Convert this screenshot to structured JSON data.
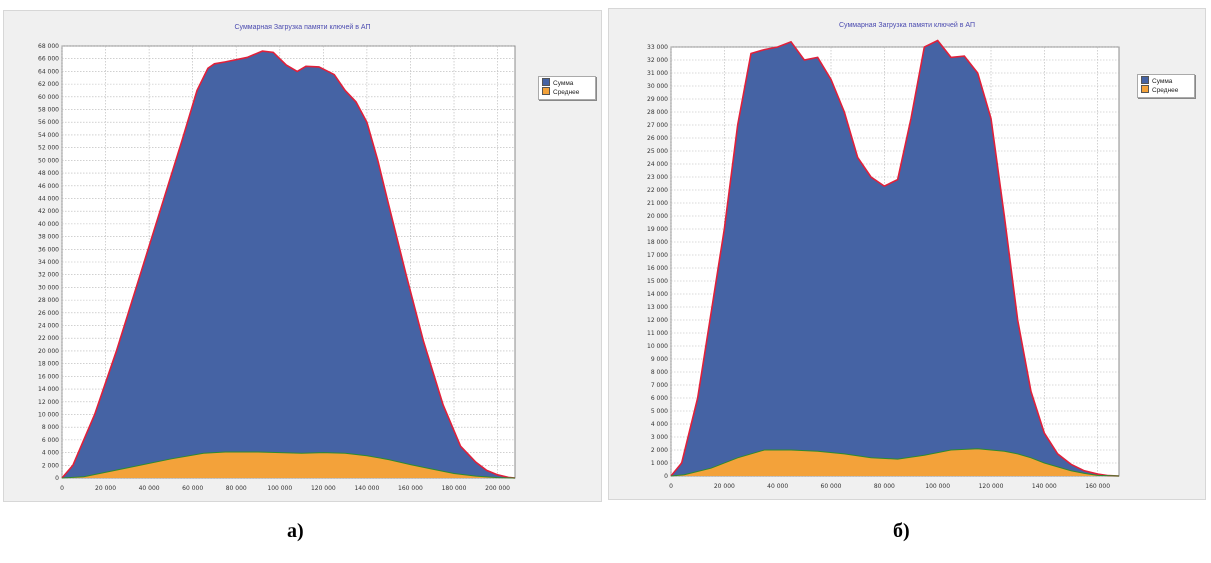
{
  "chart_data": [
    {
      "type": "area",
      "title": "Суммарная Загрузка памяти ключей в АП",
      "caption": "а)",
      "xlim": [
        0,
        208000
      ],
      "ylim": [
        0,
        68000
      ],
      "x_ticks": [
        "0",
        "20 000",
        "40 000",
        "60 000",
        "80 000",
        "100 000",
        "120 000",
        "140 000",
        "160 000",
        "180 000",
        "200 000"
      ],
      "x_tick_values": [
        0,
        20000,
        40000,
        60000,
        80000,
        100000,
        120000,
        140000,
        160000,
        180000,
        200000
      ],
      "y_ticks": [
        "0",
        "2 000",
        "4 000",
        "6 000",
        "8 000",
        "10 000",
        "12 000",
        "14 000",
        "16 000",
        "18 000",
        "20 000",
        "22 000",
        "24 000",
        "26 000",
        "28 000",
        "30 000",
        "32 000",
        "34 000",
        "36 000",
        "38 000",
        "40 000",
        "42 000",
        "44 000",
        "46 000",
        "48 000",
        "50 000",
        "52 000",
        "54 000",
        "56 000",
        "58 000",
        "60 000",
        "62 000",
        "64 000",
        "66 000",
        "68 000"
      ],
      "y_tick_values": [
        0,
        2000,
        4000,
        6000,
        8000,
        10000,
        12000,
        14000,
        16000,
        18000,
        20000,
        22000,
        24000,
        26000,
        28000,
        30000,
        32000,
        34000,
        36000,
        38000,
        40000,
        42000,
        44000,
        46000,
        48000,
        50000,
        52000,
        54000,
        56000,
        58000,
        60000,
        62000,
        64000,
        66000,
        68000
      ],
      "grid": true,
      "legend_position": "right",
      "series": [
        {
          "name": "Сумма",
          "color": "#4563a4",
          "outline": "#e0203a",
          "x": [
            0,
            5000,
            15000,
            25000,
            35000,
            45000,
            55000,
            62000,
            67000,
            70000,
            75000,
            85000,
            92000,
            97000,
            103000,
            108000,
            112000,
            118000,
            125000,
            130000,
            135000,
            140000,
            145000,
            150000,
            158000,
            166000,
            175000,
            183000,
            190000,
            195000,
            200000,
            205000,
            208000
          ],
          "values": [
            0,
            2000,
            10000,
            20000,
            31000,
            42000,
            53000,
            61000,
            64500,
            65200,
            65500,
            66200,
            67200,
            67000,
            65000,
            64000,
            64800,
            64700,
            63500,
            61000,
            59200,
            56000,
            50000,
            43000,
            32000,
            21500,
            11500,
            5000,
            2500,
            1200,
            500,
            100,
            0
          ]
        },
        {
          "name": "Среднее",
          "color": "#f3a23a",
          "outline": "#2e8b2e",
          "x": [
            0,
            10000,
            30000,
            50000,
            65000,
            75000,
            90000,
            100000,
            110000,
            120000,
            130000,
            140000,
            150000,
            160000,
            170000,
            180000,
            190000,
            200000,
            208000
          ],
          "values": [
            0,
            200,
            1600,
            3000,
            3900,
            4100,
            4100,
            4000,
            3900,
            4000,
            3900,
            3500,
            2900,
            2100,
            1400,
            700,
            300,
            50,
            0
          ]
        }
      ]
    },
    {
      "type": "area",
      "title": "Суммарная Загрузка памяти ключей в АП",
      "caption": "б)",
      "xlim": [
        0,
        168000
      ],
      "ylim": [
        0,
        33000
      ],
      "x_ticks": [
        "0",
        "20 000",
        "40 000",
        "60 000",
        "80 000",
        "100 000",
        "120 000",
        "140 000",
        "160 000"
      ],
      "x_tick_values": [
        0,
        20000,
        40000,
        60000,
        80000,
        100000,
        120000,
        140000,
        160000
      ],
      "y_ticks": [
        "0",
        "1 000",
        "2 000",
        "3 000",
        "4 000",
        "5 000",
        "6 000",
        "7 000",
        "8 000",
        "9 000",
        "10 000",
        "11 000",
        "12 000",
        "13 000",
        "14 000",
        "15 000",
        "16 000",
        "17 000",
        "18 000",
        "19 000",
        "20 000",
        "21 000",
        "22 000",
        "23 000",
        "24 000",
        "25 000",
        "26 000",
        "27 000",
        "28 000",
        "29 000",
        "30 000",
        "31 000",
        "32 000",
        "33 000"
      ],
      "y_tick_values": [
        0,
        1000,
        2000,
        3000,
        4000,
        5000,
        6000,
        7000,
        8000,
        9000,
        10000,
        11000,
        12000,
        13000,
        14000,
        15000,
        16000,
        17000,
        18000,
        19000,
        20000,
        21000,
        22000,
        23000,
        24000,
        25000,
        26000,
        27000,
        28000,
        29000,
        30000,
        31000,
        32000,
        33000
      ],
      "grid": true,
      "legend_position": "right",
      "series": [
        {
          "name": "Сумма",
          "color": "#4563a4",
          "outline": "#e0203a",
          "x": [
            0,
            4000,
            10000,
            15000,
            20000,
            25000,
            30000,
            35000,
            40000,
            45000,
            50000,
            55000,
            60000,
            65000,
            70000,
            75000,
            80000,
            85000,
            90000,
            95000,
            100000,
            105000,
            110000,
            115000,
            120000,
            125000,
            130000,
            135000,
            140000,
            145000,
            150000,
            155000,
            160000,
            164000,
            168000
          ],
          "values": [
            0,
            1000,
            6000,
            12500,
            19000,
            27000,
            32500,
            32800,
            33000,
            33400,
            32000,
            32200,
            30500,
            28000,
            24500,
            23000,
            22300,
            22800,
            27500,
            33000,
            33500,
            32200,
            32300,
            31000,
            27500,
            20000,
            12000,
            6500,
            3300,
            1700,
            900,
            400,
            150,
            30,
            0
          ]
        },
        {
          "name": "Среднее",
          "color": "#f3a23a",
          "outline": "#2e8b2e",
          "x": [
            0,
            5000,
            15000,
            25000,
            35000,
            45000,
            55000,
            65000,
            75000,
            85000,
            95000,
            105000,
            115000,
            120000,
            125000,
            130000,
            135000,
            140000,
            145000,
            150000,
            155000,
            160000,
            168000
          ],
          "values": [
            0,
            100,
            600,
            1400,
            2000,
            2000,
            1900,
            1700,
            1400,
            1300,
            1600,
            2000,
            2100,
            2000,
            1900,
            1700,
            1400,
            1000,
            700,
            400,
            200,
            50,
            0
          ]
        }
      ]
    }
  ]
}
